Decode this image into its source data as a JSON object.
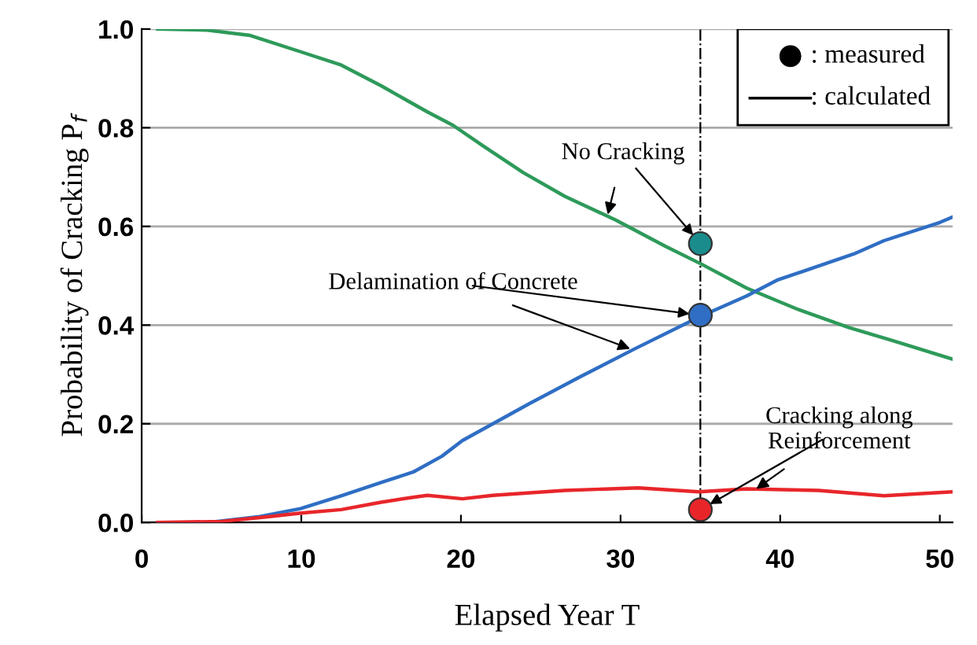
{
  "chart_data": {
    "type": "line",
    "xlabel": "Elapsed Year T",
    "ylabel": "Probability of Cracking P$_{f}$",
    "xlim": [
      0,
      50.8
    ],
    "xticks": [
      0,
      10,
      20,
      30,
      40,
      50
    ],
    "ylim": [
      0,
      1.0
    ],
    "yticks": [
      {
        "value": 0,
        "label": "0.0"
      },
      {
        "value": 0.2,
        "label": "0.2"
      },
      {
        "value": 0.4,
        "label": "0.4"
      },
      {
        "value": 0.6,
        "label": "0.6"
      },
      {
        "value": 0.8,
        "label": "0.8"
      },
      {
        "value": 1.0,
        "label": "1.0"
      }
    ],
    "grid": "y",
    "line_style": "solid",
    "series": [
      {
        "color": "#2e9a5a",
        "x": [
          1,
          4,
          6.8,
          9.95,
          12.5,
          15,
          17.9,
          19.5,
          21.4,
          23.9,
          26.5,
          29.7,
          32.8,
          35.1,
          37.9,
          41.1,
          44.3,
          47.1,
          50.8
        ],
        "values": [
          1.0,
          0.998,
          0.987,
          0.954,
          0.927,
          0.885,
          0.832,
          0.805,
          0.763,
          0.709,
          0.661,
          0.613,
          0.56,
          0.523,
          0.475,
          0.432,
          0.395,
          0.368,
          0.331
        ]
      },
      {
        "color": "#2f6ec4",
        "x": [
          1,
          4.2,
          7.4,
          9.95,
          12.5,
          15,
          17,
          18.8,
          20.1,
          22,
          24.3,
          27.4,
          30.9,
          34.9,
          37.9,
          39.8,
          44.6,
          46.5,
          50,
          50.8
        ],
        "values": [
          0,
          0,
          0.012,
          0.028,
          0.054,
          0.081,
          0.102,
          0.134,
          0.166,
          0.2,
          0.241,
          0.294,
          0.352,
          0.416,
          0.459,
          0.491,
          0.544,
          0.571,
          0.608,
          0.619
        ]
      },
      {
        "color": "#e8262a",
        "x": [
          1,
          5,
          8,
          10,
          12.5,
          15,
          17,
          17.9,
          20.1,
          22,
          26.5,
          31.1,
          34.9,
          37.9,
          42.4,
          46.5,
          50.8
        ],
        "values": [
          0,
          0.002,
          0.012,
          0.019,
          0.026,
          0.041,
          0.051,
          0.055,
          0.048,
          0.055,
          0.065,
          0.07,
          0.062,
          0.068,
          0.065,
          0.054,
          0.062
        ]
      },
      {
        "type": "scatter",
        "x": [
          35,
          35,
          35
        ],
        "values": [
          0.565,
          0.42,
          0.026
        ],
        "colors": [
          "#1a8c8c",
          "#2f6ec4",
          "#e8262a"
        ]
      }
    ],
    "ref_lines": [
      {
        "axis": "x",
        "value": 35,
        "line_style": "dashdot",
        "color": "#000000"
      }
    ],
    "annotations": [
      {
        "text": "No Cracking",
        "x": 29.2,
        "y": 0.624
      },
      {
        "text": "Delamination of Concrete",
        "x": 30.6,
        "y": 0.352
      },
      {
        "text": "Cracking along\nReinforcement",
        "x": 38.5,
        "y": 0.068
      },
      ": measured",
      ": calculated"
    ]
  }
}
